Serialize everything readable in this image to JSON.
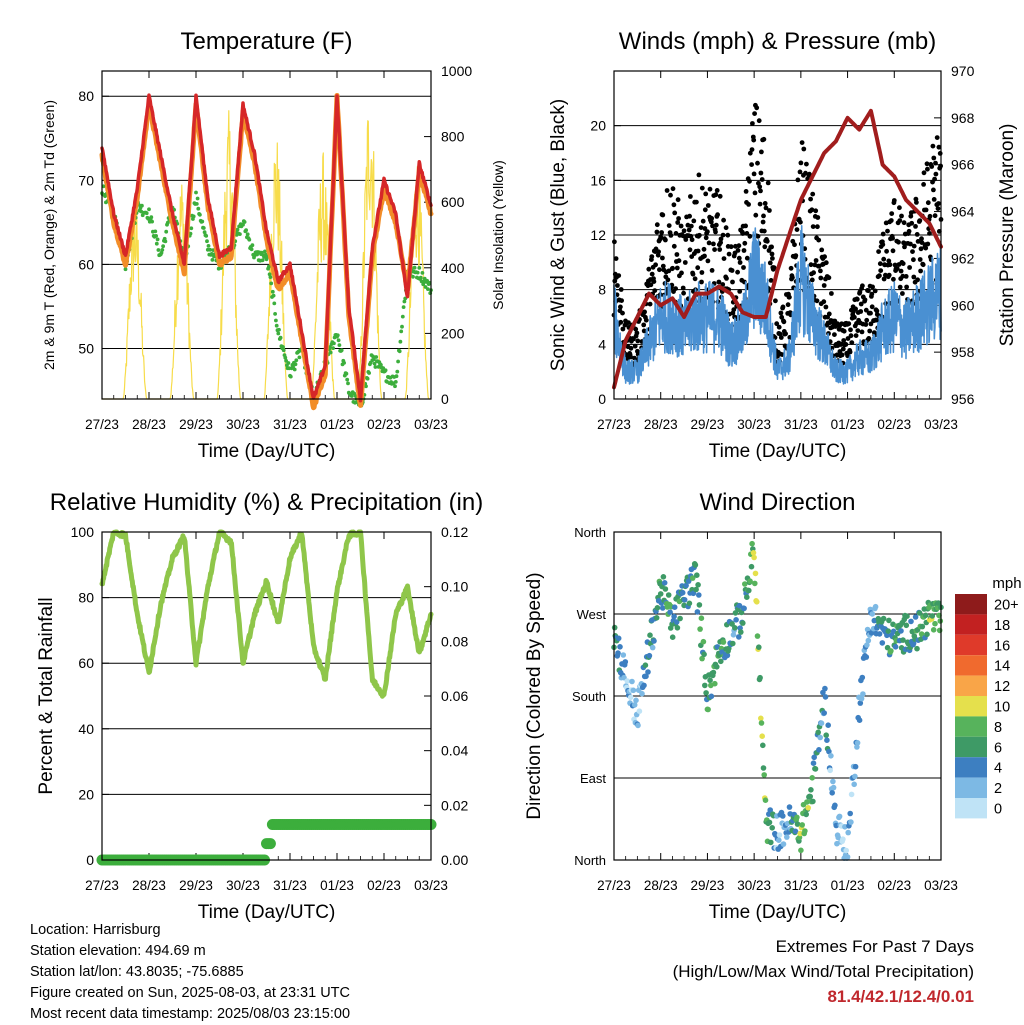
{
  "x_ticks": [
    "27/23",
    "28/23",
    "29/23",
    "30/23",
    "31/23",
    "01/23",
    "02/23",
    "03/23"
  ],
  "colors": {
    "temp_2m": "#d62728",
    "temp_9m": "#f28d28",
    "dewpoint": "#3cae3c",
    "solar": "#f7dc4a",
    "gust": "#000000",
    "wind": "#4a90d2",
    "pressure": "#a11d1d",
    "rh": "#8fc64a",
    "precip": "#3cae3c"
  },
  "panels": {
    "temperature": {
      "title": "Temperature (F)",
      "xlabel": "Time (Day/UTC)",
      "ylabel_left": "2m & 9m T (Red, Orange) & 2m Td (Green)",
      "ylabel_right": "Solar Insolation (Yellow)",
      "left_ticks": [
        "50",
        "60",
        "70",
        "80"
      ],
      "right_ticks": [
        "0",
        "200",
        "400",
        "600",
        "800",
        "1000"
      ]
    },
    "winds": {
      "title": "Winds (mph) & Pressure (mb)",
      "xlabel": "Time (Day/UTC)",
      "ylabel_left": "Sonic Wind & Gust (Blue, Black)",
      "ylabel_right": "Station Pressure (Maroon)",
      "left_ticks": [
        "0",
        "4",
        "8",
        "12",
        "16",
        "20"
      ],
      "right_ticks": [
        "956",
        "958",
        "960",
        "962",
        "964",
        "966",
        "968",
        "970"
      ]
    },
    "humidity": {
      "title": "Relative Humidity (%) & Precipitation (in)",
      "xlabel": "Time (Day/UTC)",
      "ylabel_left": "Percent & Total Rainfall",
      "left_ticks": [
        "0",
        "20",
        "40",
        "60",
        "80",
        "100"
      ],
      "right_ticks": [
        "0.00",
        "0.02",
        "0.04",
        "0.06",
        "0.08",
        "0.10",
        "0.12"
      ]
    },
    "direction": {
      "title": "Wind Direction",
      "xlabel": "Time (Day/UTC)",
      "ylabel_left": "Direction (Colored By Speed)",
      "left_ticks": [
        "North",
        "East",
        "South",
        "West",
        "North"
      ],
      "legend_title": "mph",
      "legend_labels": [
        "20+",
        "18",
        "16",
        "14",
        "12",
        "10",
        "8",
        "6",
        "4",
        "2",
        "0"
      ],
      "legend_colors": [
        "#8e1b1b",
        "#c22121",
        "#df3a2a",
        "#f06a2e",
        "#f9a548",
        "#e5e04c",
        "#57b35c",
        "#3e9a66",
        "#3d7fc1",
        "#7db9e4",
        "#bfe3f6"
      ]
    }
  },
  "info": {
    "location": "Location: Harrisburg",
    "elevation": "Station elevation: 494.69 m",
    "latlon": "Station lat/lon: 43.8035; -75.6885",
    "created": "Figure created on Sun, 2025-08-03, at 23:31 UTC",
    "timestamp": "Most recent data timestamp: 2025/08/03 23:15:00"
  },
  "extremes": {
    "line1": "Extremes For Past 7 Days",
    "line2": "(High/Low/Max Wind/Total Precipitation)",
    "values": "81.4/42.1/12.4/0.01"
  },
  "chart_data": [
    {
      "type": "line",
      "title": "Temperature (F)",
      "xlabel": "Time (Day/UTC)",
      "x": [
        0,
        0.25,
        0.5,
        0.75,
        1,
        1.25,
        1.5,
        1.75,
        2,
        2.25,
        2.5,
        2.75,
        3,
        3.25,
        3.5,
        3.75,
        4,
        4.25,
        4.5,
        4.75,
        5,
        5.25,
        5.5,
        5.75,
        6,
        6.25,
        6.5,
        6.75,
        7
      ],
      "series": [
        {
          "name": "2m T",
          "axis": "left",
          "values": [
            74,
            66,
            61,
            69,
            80,
            73,
            66,
            60,
            80,
            68,
            61,
            62,
            79,
            73,
            64,
            58,
            60,
            52,
            44,
            48,
            80,
            55,
            44,
            62,
            70,
            66,
            56,
            72,
            67
          ]
        },
        {
          "name": "9m T",
          "axis": "left",
          "values": [
            73,
            65,
            60,
            68,
            79,
            72,
            65,
            59,
            79,
            67,
            60,
            61,
            78,
            72,
            63,
            57,
            59,
            51,
            43,
            47,
            80,
            54,
            43,
            61,
            69,
            65,
            57,
            71,
            66
          ]
        },
        {
          "name": "2m Td",
          "axis": "left",
          "values": [
            69,
            66,
            60,
            67,
            66,
            61,
            67,
            60,
            68,
            62,
            60,
            62,
            65,
            61,
            61,
            52,
            47,
            50,
            44,
            48,
            52,
            45,
            43,
            49,
            47,
            46,
            59,
            59,
            57
          ]
        },
        {
          "name": "Solar Insolation",
          "axis": "right",
          "values": [
            0,
            0,
            0,
            650,
            0,
            0,
            720,
            0,
            880,
            0,
            0,
            0,
            840,
            0,
            0,
            0,
            0,
            0,
            0,
            0,
            980,
            0,
            0,
            0,
            0,
            0,
            0,
            820,
            0
          ]
        }
      ],
      "ylim_left": [
        44,
        83
      ],
      "ylim_right": [
        0,
        1000
      ]
    },
    {
      "type": "line",
      "title": "Winds (mph) & Pressure (mb)",
      "xlabel": "Time (Day/UTC)",
      "x": [
        0,
        0.25,
        0.5,
        0.75,
        1,
        1.25,
        1.5,
        1.75,
        2,
        2.25,
        2.5,
        2.75,
        3,
        3.25,
        3.5,
        3.75,
        4,
        4.25,
        4.5,
        4.75,
        5,
        5.25,
        5.5,
        5.75,
        6,
        6.25,
        6.5,
        6.75,
        7
      ],
      "series": [
        {
          "name": "Sonic Wind",
          "axis": "left",
          "values": [
            6,
            2,
            2,
            4,
            6,
            6,
            5,
            6,
            6,
            6,
            4,
            5,
            9,
            7,
            2,
            3,
            9,
            6,
            4,
            2,
            2,
            3,
            3,
            5,
            6,
            5,
            6,
            7,
            8
          ]
        },
        {
          "name": "Gust",
          "axis": "left",
          "values": [
            10,
            4,
            4,
            7,
            11,
            12,
            9,
            12,
            11,
            11,
            8,
            9,
            16,
            14,
            4,
            6,
            14,
            11,
            8,
            4,
            4,
            6,
            6,
            9,
            11,
            9,
            11,
            13,
            15
          ]
        },
        {
          "name": "Station Pressure",
          "axis": "right",
          "values": [
            956.5,
            958.5,
            959.5,
            960.5,
            960.0,
            960.3,
            959.5,
            960.5,
            960.5,
            960.8,
            960.5,
            959.7,
            959.5,
            959.5,
            961.5,
            963.0,
            964.5,
            965.5,
            966.5,
            967.0,
            968.0,
            967.5,
            968.3,
            966.0,
            965.5,
            964.5,
            964.0,
            963.5,
            962.5
          ]
        }
      ],
      "ylim_left": [
        0,
        24
      ],
      "ylim_right": [
        956,
        970
      ]
    },
    {
      "type": "line",
      "title": "Relative Humidity (%) & Precipitation (in)",
      "xlabel": "Time (Day/UTC)",
      "x": [
        0,
        0.25,
        0.5,
        0.75,
        1,
        1.25,
        1.5,
        1.75,
        2,
        2.25,
        2.5,
        2.75,
        3,
        3.25,
        3.5,
        3.75,
        4,
        4.25,
        4.5,
        4.75,
        5,
        5.25,
        5.5,
        5.75,
        6,
        6.25,
        6.5,
        6.75,
        7
      ],
      "series": [
        {
          "name": "Relative Humidity",
          "axis": "left",
          "values": [
            84,
            100,
            99,
            75,
            57,
            78,
            92,
            99,
            60,
            83,
            100,
            97,
            60,
            75,
            85,
            72,
            92,
            100,
            65,
            55,
            82,
            99,
            100,
            55,
            50,
            75,
            83,
            63,
            75
          ]
        },
        {
          "name": "Total Rainfall",
          "axis": "right",
          "values": [
            0,
            0,
            0,
            0,
            0,
            0,
            0,
            0,
            0,
            0,
            0,
            0,
            0,
            0,
            0.01,
            0.013,
            0.013,
            0.013,
            0.013,
            0.013,
            0.013,
            0.013,
            0.013,
            0.013,
            0.013,
            0.013,
            0.013,
            0.013,
            0.013
          ]
        }
      ],
      "ylim_left": [
        0,
        100
      ],
      "ylim_right": [
        0,
        0.12
      ]
    },
    {
      "type": "scatter",
      "title": "Wind Direction",
      "xlabel": "Time (Day/UTC)",
      "ylabel": "Direction (Colored By Speed)",
      "x": [
        0,
        0.25,
        0.5,
        0.75,
        1,
        1.25,
        1.5,
        1.75,
        2,
        2.25,
        2.5,
        2.75,
        3,
        3.25,
        3.5,
        3.75,
        4,
        4.25,
        4.5,
        4.75,
        5,
        5.25,
        5.5,
        5.75,
        6,
        6.25,
        6.5,
        6.75,
        7
      ],
      "direction_deg": [
        250,
        200,
        160,
        230,
        300,
        260,
        290,
        310,
        180,
        230,
        250,
        270,
        340,
        40,
        30,
        40,
        30,
        80,
        180,
        40,
        10,
        170,
        270,
        250,
        240,
        250,
        250,
        270,
        260
      ],
      "speed": [
        6,
        2,
        2,
        4,
        6,
        6,
        5,
        6,
        6,
        6,
        4,
        5,
        9,
        7,
        2,
        3,
        9,
        6,
        4,
        2,
        2,
        3,
        3,
        5,
        6,
        5,
        6,
        7,
        8
      ]
    }
  ]
}
